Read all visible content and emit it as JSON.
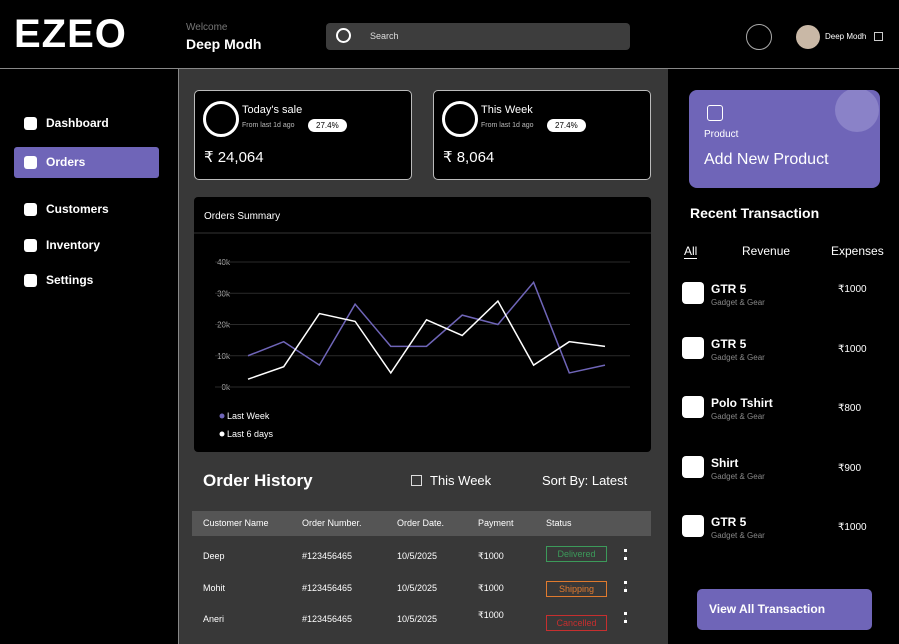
{
  "header": {
    "logo": "EZEO",
    "welcome": "Welcome",
    "user_name": "Deep Modh",
    "search_placeholder": "Search",
    "profile_name": "Deep Modh"
  },
  "nav": {
    "items": [
      "Dashboard",
      "Orders",
      "Customers",
      "Inventory",
      "Settings"
    ],
    "active": 1
  },
  "stats": [
    {
      "title": "Today's sale",
      "subtitle": "From last 1d ago",
      "badge": "27.4%",
      "value": "₹ 24,064"
    },
    {
      "title": "This Week",
      "subtitle": "From last 1d ago",
      "badge": "27.4%",
      "value": "₹ 8,064"
    }
  ],
  "chart_data": {
    "type": "line",
    "title": "Orders Summary",
    "categories": [
      null,
      null,
      null,
      null,
      null,
      null,
      null,
      null,
      null,
      null,
      null
    ],
    "series": [
      {
        "name": "Last Week",
        "color": "#6f65b8",
        "values": [
          10000,
          14500,
          7000,
          26500,
          13000,
          13000,
          23000,
          20000,
          33500,
          4500,
          7000
        ]
      },
      {
        "name": "Last 6 days",
        "color": "#ffffff",
        "values": [
          2500,
          6500,
          23500,
          21000,
          4500,
          21500,
          16500,
          27500,
          7000,
          14500,
          13000
        ]
      }
    ],
    "ylim": [
      0,
      40000
    ],
    "yticks": [
      {
        "value": 0,
        "label": "0k"
      },
      {
        "value": 10000,
        "label": "10k"
      },
      {
        "value": 20000,
        "label": "20k"
      },
      {
        "value": 30000,
        "label": "30k"
      },
      {
        "value": 40000,
        "label": "40k"
      }
    ],
    "grid": true
  },
  "order_history": {
    "title": "Order History",
    "filter": "This Week",
    "sort": "Sort By: Latest",
    "columns": [
      "Customer Name",
      "Order Number.",
      "Order Date.",
      "Payment",
      "Status"
    ],
    "rows": [
      [
        "Deep",
        "#123456465",
        "10/5/2025",
        "₹1000",
        "Delivered"
      ],
      [
        "Mohit",
        "#123456465",
        "10/5/2025",
        "₹1000",
        "Shipping"
      ],
      [
        "Aneri",
        "#123456465",
        "10/5/2025",
        "₹1000",
        "Cancelled"
      ]
    ]
  },
  "add_product": {
    "label": "Product",
    "title": "Add New Product"
  },
  "recent": {
    "title": "Recent Transaction",
    "tabs": [
      "All",
      "Revenue",
      "Expenses"
    ],
    "items": [
      {
        "name": "GTR 5",
        "category": "Gadget & Gear",
        "amount": "₹1000"
      },
      {
        "name": "GTR 5",
        "category": "Gadget & Gear",
        "amount": "₹1000"
      },
      {
        "name": "Polo Tshirt",
        "category": "Gadget & Gear",
        "amount": "₹800"
      },
      {
        "name": "Shirt",
        "category": "Gadget & Gear",
        "amount": "₹900"
      },
      {
        "name": "GTR 5",
        "category": "Gadget & Gear",
        "amount": "₹1000"
      }
    ],
    "button": "View All Transaction"
  }
}
